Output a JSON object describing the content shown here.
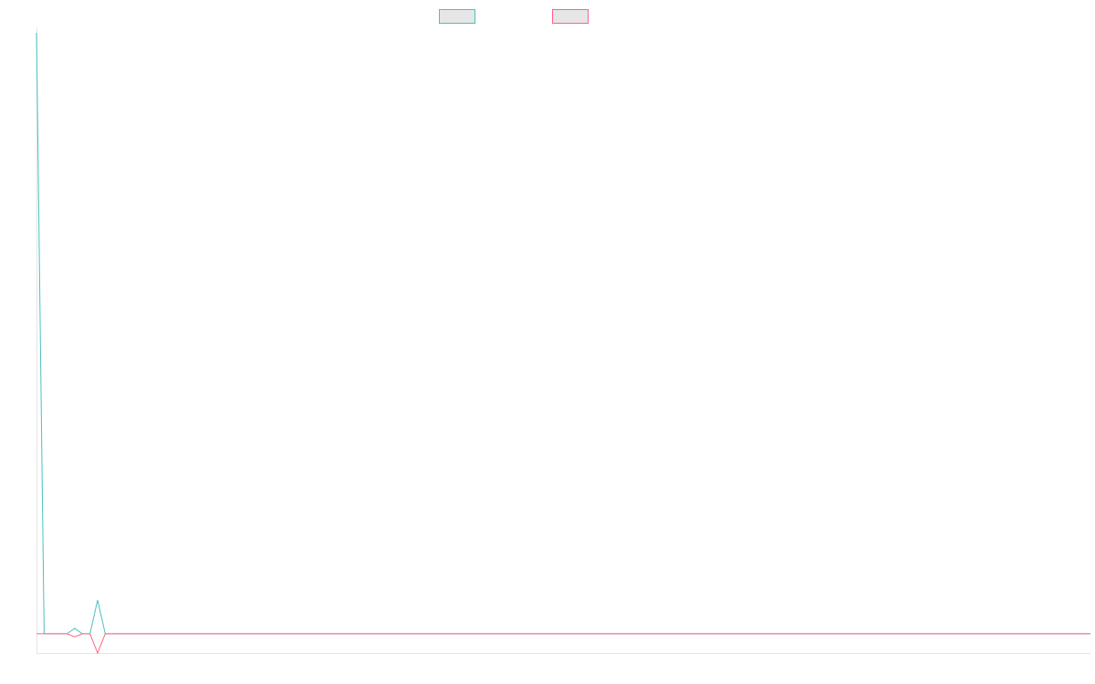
{
  "chart_data": {
    "type": "line",
    "title": "",
    "xlabel": "",
    "ylabel": "",
    "ylim": [
      -3.2,
      100
    ],
    "grid": false,
    "legend": "top",
    "series": [
      {
        "color": "#4bc0c0",
        "values": [
          100,
          0,
          0,
          0,
          0,
          0.9,
          0,
          0,
          5.6,
          0,
          0,
          0,
          0,
          0,
          0,
          0,
          0,
          0,
          0,
          0,
          0,
          0,
          0,
          0,
          0,
          0,
          0,
          0,
          0,
          0,
          0,
          0,
          0,
          0,
          0,
          0,
          0,
          0,
          0,
          0,
          0,
          0,
          0,
          0,
          0,
          0,
          0,
          0,
          0,
          0,
          0,
          0,
          0,
          0,
          0,
          0,
          0,
          0,
          0,
          0,
          0,
          0,
          0,
          0,
          0,
          0,
          0,
          0,
          0,
          0,
          0,
          0,
          0,
          0,
          0,
          0,
          0,
          0,
          0,
          0,
          0,
          0,
          0,
          0,
          0,
          0,
          0,
          0,
          0,
          0,
          0,
          0,
          0,
          0,
          0,
          0,
          0,
          0,
          0,
          0,
          0,
          0,
          0,
          0,
          0,
          0,
          0,
          0,
          0,
          0,
          0,
          0,
          0,
          0,
          0,
          0,
          0,
          0,
          0,
          0,
          0,
          0,
          0,
          0,
          0,
          0,
          0,
          0,
          0,
          0,
          0,
          0,
          0,
          0,
          0,
          0,
          0,
          0,
          0
        ]
      },
      {
        "color": "#ff6384",
        "values": [
          0,
          0,
          0,
          0,
          0,
          -0.5,
          0,
          0,
          -3.2,
          0,
          0,
          0,
          0,
          0,
          0,
          0,
          0,
          0,
          0,
          0,
          0,
          0,
          0,
          0,
          0,
          0,
          0,
          0,
          0,
          0,
          0,
          0,
          0,
          0,
          0,
          0,
          0,
          0,
          0,
          0,
          0,
          0,
          0,
          0,
          0,
          0,
          0,
          0,
          0,
          0,
          0,
          0,
          0,
          0,
          0,
          0,
          0,
          0,
          0,
          0,
          0,
          0,
          0,
          0,
          0,
          0,
          0,
          0,
          0,
          0,
          0,
          0,
          0,
          0,
          0,
          0,
          0,
          0,
          0,
          0,
          0,
          0,
          0,
          0,
          0,
          0,
          0,
          0,
          0,
          0,
          0,
          0,
          0,
          0,
          0,
          0,
          0,
          0,
          0,
          0,
          0,
          0,
          0,
          0,
          0,
          0,
          0,
          0,
          0,
          0,
          0,
          0,
          0,
          0,
          0,
          0,
          0,
          0,
          0,
          0,
          0,
          0,
          0,
          0,
          0,
          0,
          0,
          0,
          0,
          0,
          0,
          0,
          0,
          0,
          0,
          0,
          0,
          0,
          0
        ]
      }
    ]
  }
}
